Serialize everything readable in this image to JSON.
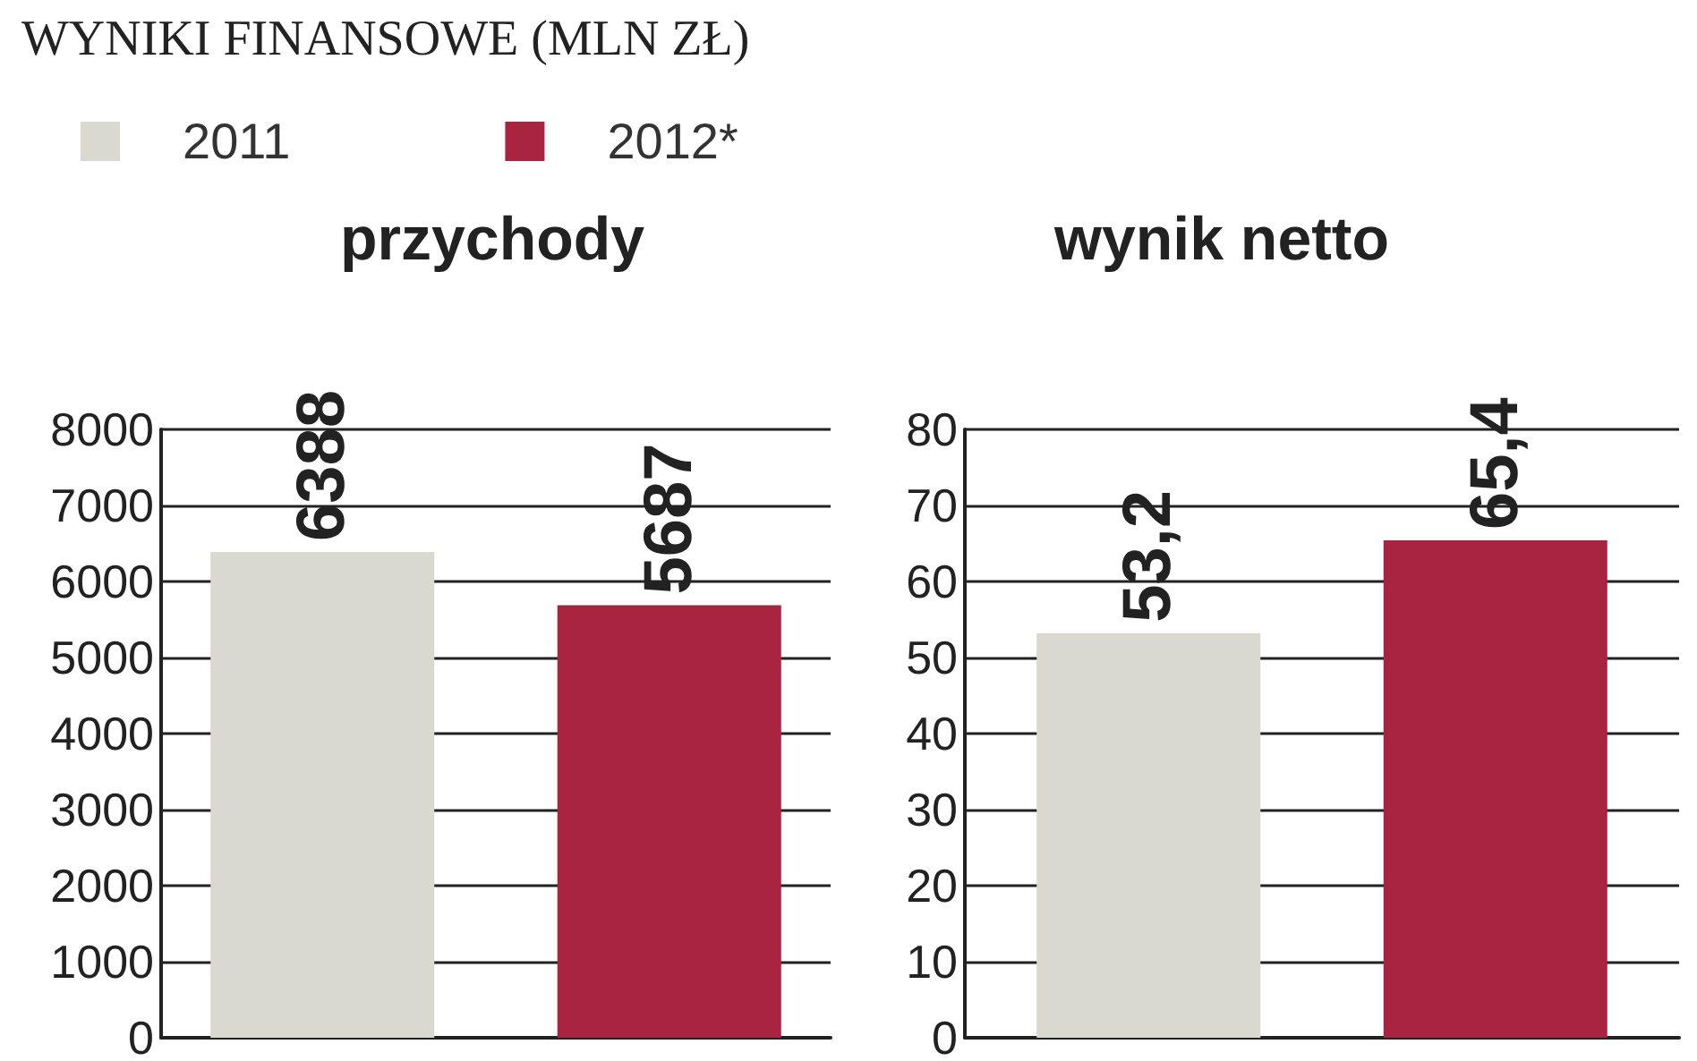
{
  "chart_data": [
    {
      "type": "bar",
      "title": "przychody",
      "annotations": [
        "WYNIKI FINANSOWE (MLN ZŁ)"
      ],
      "categories": [
        null
      ],
      "series": [
        {
          "name": "2011",
          "color": "#d9d9cf",
          "values": [
            6388
          ],
          "value_labels": [
            "6388"
          ]
        },
        {
          "name": "2012*",
          "color": "#a8233f",
          "values": [
            5687
          ],
          "value_labels": [
            "5687"
          ]
        }
      ],
      "ylim": [
        0,
        8000
      ],
      "yticks": [
        0,
        1000,
        2000,
        3000,
        4000,
        5000,
        6000,
        7000,
        8000
      ],
      "grid": "y",
      "legend": "top"
    },
    {
      "type": "bar",
      "title": "wynik netto",
      "categories": [
        null
      ],
      "series": [
        {
          "color": "#d9d9cf",
          "values": [
            53.2
          ],
          "value_labels": [
            "53,2"
          ]
        },
        {
          "color": "#a8233f",
          "values": [
            65.4
          ],
          "value_labels": [
            "65,4"
          ]
        }
      ],
      "ylim": [
        0,
        80
      ],
      "yticks": [
        0,
        10,
        20,
        30,
        40,
        50,
        60,
        70,
        80
      ],
      "grid": "y"
    }
  ]
}
